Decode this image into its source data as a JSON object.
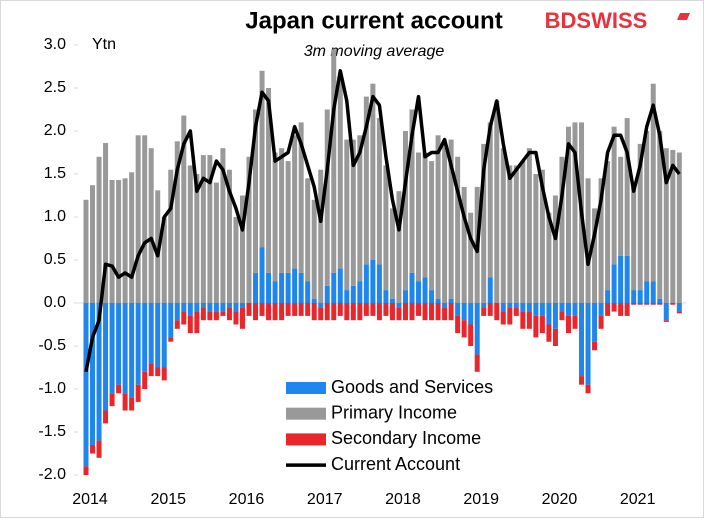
{
  "logo": "BDSWISS",
  "chart_data": {
    "type": "bar",
    "title": "Japan current account",
    "subtitle": "3m moving average",
    "y_label": "Ytn",
    "categories": [
      "2014",
      null,
      null,
      null,
      null,
      null,
      null,
      null,
      null,
      null,
      null,
      null,
      "2015",
      null,
      null,
      null,
      null,
      null,
      null,
      null,
      null,
      null,
      null,
      null,
      "2016",
      null,
      null,
      null,
      null,
      null,
      null,
      null,
      null,
      null,
      null,
      null,
      "2017",
      null,
      null,
      null,
      null,
      null,
      null,
      null,
      null,
      null,
      null,
      null,
      "2018",
      null,
      null,
      null,
      null,
      null,
      null,
      null,
      null,
      null,
      null,
      null,
      "2019",
      null,
      null,
      null,
      null,
      null,
      null,
      null,
      null,
      null,
      null,
      null,
      "2020",
      null,
      null,
      null,
      null,
      null,
      null,
      null,
      null,
      null,
      null,
      null,
      "2021",
      null,
      null,
      null,
      null,
      null,
      null,
      null
    ],
    "ylim": [
      -2,
      3
    ],
    "yticks": [
      {
        "value": -2,
        "label": "-2.0"
      },
      -1.5,
      {
        "value": -1,
        "label": "-1.0"
      },
      -0.5,
      {
        "value": 0,
        "label": "0.0"
      },
      0.5,
      {
        "value": 1,
        "label": "1.0"
      },
      1.5,
      {
        "value": 2,
        "label": "2.0"
      },
      2.5,
      {
        "value": 3,
        "label": "3.0"
      }
    ],
    "series": [
      {
        "name": "Goods and Services",
        "type": "bar",
        "color": "#1e86ec",
        "values": [
          -1.9,
          -1.65,
          -1.6,
          -1.25,
          -1.05,
          -0.95,
          -1.05,
          -1.1,
          -0.95,
          -0.8,
          -0.7,
          -0.75,
          -0.75,
          -0.4,
          -0.2,
          -0.1,
          -0.15,
          -0.1,
          -0.05,
          -0.1,
          -0.1,
          -0.1,
          -0.05,
          -0.1,
          -0.05,
          0,
          0.35,
          0.65,
          0.35,
          0.25,
          0.35,
          0.35,
          0.4,
          0.35,
          0.25,
          0.05,
          -0.05,
          0.2,
          0.35,
          0.4,
          0.15,
          0.2,
          0.25,
          0.45,
          0.5,
          0.45,
          0.15,
          0.05,
          -0.05,
          0.15,
          0.35,
          0.25,
          0.3,
          0.15,
          0.05,
          -0.05,
          0.05,
          -0.15,
          -0.2,
          -0.25,
          -0.6,
          -0.05,
          0.3,
          0,
          -0.1,
          -0.05,
          -0.05,
          -0.1,
          -0.1,
          -0.15,
          -0.15,
          -0.25,
          -0.3,
          -0.1,
          -0.15,
          -0.15,
          -0.85,
          -0.95,
          -0.45,
          -0.15,
          0.15,
          0.45,
          0.55,
          0.55,
          0.15,
          0.15,
          0.25,
          0.25,
          0.05,
          -0.2,
          0,
          -0.1
        ]
      },
      {
        "name": "Primary Income",
        "type": "bar",
        "color": "#999999",
        "values": [
          1.2,
          1.37,
          1.7,
          1.86,
          1.43,
          1.43,
          1.45,
          1.52,
          1.95,
          1.95,
          1.8,
          1.31,
          1.0,
          1.55,
          1.88,
          2.18,
          1.6,
          1.5,
          1.72,
          1.72,
          1.4,
          1.8,
          1.55,
          1.0,
          1.25,
          1.7,
          1.9,
          2.05,
          2.15,
          1.5,
          1.45,
          1.3,
          1.55,
          1.75,
          1.2,
          1.15,
          1.55,
          2.05,
          2.6,
          2.2,
          1.75,
          1.7,
          1.7,
          1.95,
          2.05,
          1.7,
          1.45,
          1.05,
          1.3,
          1.85,
          1.9,
          1.5,
          1.45,
          1.5,
          1.9,
          1.85,
          1.85,
          1.7,
          1.35,
          1.05,
          1.35,
          1.85,
          1.8,
          2.35,
          1.8,
          1.6,
          1.6,
          1.65,
          1.8,
          1.5,
          1.55,
          1.05,
          1.25,
          1.7,
          2.05,
          2.1,
          2.1,
          1.45,
          1.1,
          1.45,
          1.5,
          1.6,
          1.15,
          1.6,
          1.2,
          1.7,
          1.75,
          2.3,
          1.95,
          1.8,
          1.78,
          1.75
        ]
      },
      {
        "name": "Secondary Income",
        "type": "bar",
        "color": "#e8262c",
        "values": [
          -0.1,
          -0.1,
          -0.2,
          -0.15,
          -0.15,
          -0.1,
          -0.2,
          -0.15,
          -0.2,
          -0.2,
          -0.15,
          -0.1,
          -0.15,
          -0.05,
          -0.1,
          -0.15,
          -0.2,
          -0.25,
          -0.15,
          -0.1,
          -0.1,
          -0.05,
          -0.15,
          -0.15,
          -0.25,
          -0.15,
          -0.2,
          -0.15,
          -0.2,
          -0.2,
          -0.2,
          -0.15,
          -0.15,
          -0.15,
          -0.15,
          -0.2,
          -0.15,
          -0.2,
          -0.2,
          -0.15,
          -0.2,
          -0.2,
          -0.2,
          -0.15,
          -0.15,
          -0.2,
          -0.15,
          -0.2,
          -0.15,
          -0.2,
          -0.2,
          -0.15,
          -0.2,
          -0.2,
          -0.2,
          -0.15,
          -0.2,
          -0.2,
          -0.2,
          -0.25,
          -0.2,
          -0.1,
          -0.15,
          -0.2,
          -0.15,
          -0.2,
          -0.1,
          -0.2,
          -0.2,
          -0.25,
          -0.2,
          -0.2,
          -0.2,
          -0.1,
          -0.2,
          -0.15,
          -0.1,
          -0.1,
          -0.1,
          -0.15,
          -0.15,
          -0.1,
          -0.15,
          -0.15,
          -0.02,
          -0.02,
          -0.02,
          -0.02,
          -0.02,
          -0.02,
          -0.02,
          -0.02
        ]
      },
      {
        "name": "Current Account",
        "type": "line",
        "color": "#000000",
        "values": [
          -0.8,
          -0.4,
          -0.2,
          0.45,
          0.43,
          0.3,
          0.35,
          0.3,
          0.55,
          0.7,
          0.75,
          0.55,
          1.0,
          1.1,
          1.55,
          1.85,
          2.0,
          1.3,
          1.45,
          1.4,
          1.65,
          1.55,
          1.3,
          1.1,
          0.85,
          1.4,
          2.05,
          2.45,
          2.35,
          1.65,
          1.7,
          1.75,
          2.05,
          1.85,
          1.6,
          1.35,
          0.95,
          1.55,
          2.25,
          2.7,
          2.35,
          1.6,
          1.75,
          2.05,
          2.4,
          2.3,
          1.7,
          1.2,
          0.85,
          1.4,
          1.95,
          2.4,
          1.7,
          1.75,
          1.75,
          1.9,
          1.6,
          1.3,
          1.0,
          0.75,
          0.6,
          1.55,
          2.05,
          2.35,
          1.85,
          1.45,
          1.55,
          1.65,
          1.75,
          1.75,
          1.35,
          1.0,
          0.75,
          1.25,
          1.85,
          1.75,
          1.05,
          0.45,
          0.8,
          1.2,
          1.75,
          1.95,
          1.95,
          1.75,
          1.3,
          1.6,
          2.05,
          2.3,
          1.95,
          1.4,
          1.6,
          1.5
        ]
      }
    ]
  }
}
